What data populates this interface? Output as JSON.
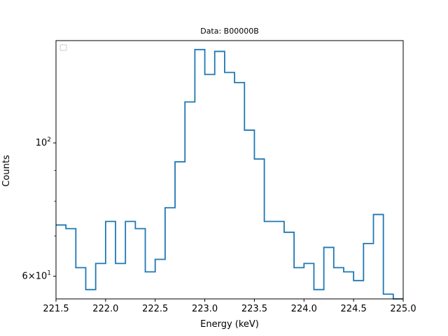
{
  "chart_data": {
    "type": "line",
    "style": "step",
    "title": "Data: B00000B",
    "xlabel": "Energy (keV)",
    "ylabel": "Counts",
    "xlim": [
      221.5,
      225.0
    ],
    "ylim": [
      55,
      148
    ],
    "yscale": "log",
    "grid": false,
    "legend": {
      "position": "top-left",
      "entries": []
    },
    "x_ticks": [
      "221.5",
      "222.0",
      "222.5",
      "223.0",
      "223.5",
      "224.0",
      "224.5",
      "225.0"
    ],
    "y_major_ticks": [
      {
        "value": 60,
        "base": "6×10",
        "exp": "1"
      },
      {
        "value": 100,
        "base": "10",
        "exp": "2"
      }
    ],
    "y_minor_ticks": [
      70,
      80,
      90
    ],
    "series": [
      {
        "color": "#1f77b4",
        "bin_width": 0.1,
        "x": [
          221.5,
          221.6,
          221.7,
          221.8,
          221.9,
          222.0,
          222.1,
          222.2,
          222.3,
          222.4,
          222.5,
          222.6,
          222.7,
          222.8,
          222.9,
          223.0,
          223.1,
          223.2,
          223.3,
          223.4,
          223.5,
          223.6,
          223.7,
          223.8,
          223.9,
          224.0,
          224.1,
          224.2,
          224.3,
          224.4,
          224.5,
          224.6,
          224.7,
          224.8,
          224.9
        ],
        "values": [
          73,
          72,
          62,
          57,
          63,
          74,
          63,
          74,
          72,
          61,
          64,
          78,
          93,
          117,
          143,
          130,
          142,
          131,
          126,
          105,
          94,
          74,
          74,
          71,
          62,
          63,
          57,
          67,
          62,
          61,
          59,
          68,
          76,
          56,
          54
        ]
      }
    ]
  }
}
